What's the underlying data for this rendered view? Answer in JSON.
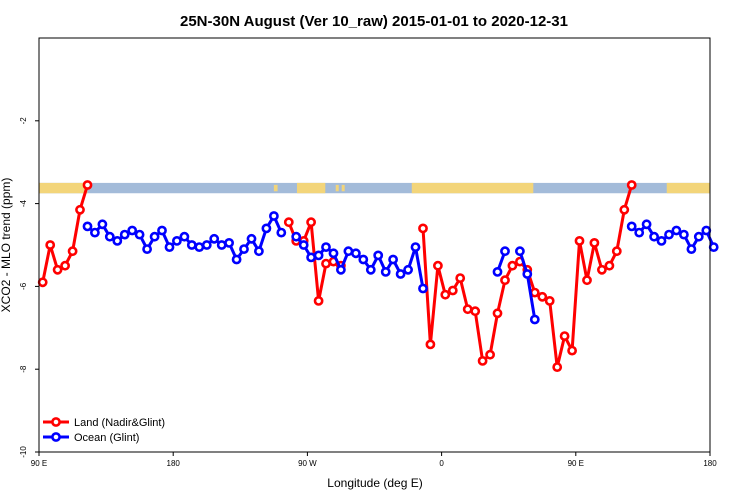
{
  "chart_data": {
    "type": "line",
    "title": "25N-30N August (Ver 10_raw)   2015-01-01 to 2020-12-31",
    "xlabel": "Longitude (deg E)",
    "ylabel": "XCO2 - MLO trend (ppm)",
    "xlim": [
      90,
      540
    ],
    "ylim": [
      -10,
      0
    ],
    "x_ticks": [
      {
        "value": 90,
        "label": "90 E"
      },
      {
        "value": 180,
        "label": "180"
      },
      {
        "value": 270,
        "label": "90 W"
      },
      {
        "value": 360,
        "label": "0"
      },
      {
        "value": 450,
        "label": "90 E"
      },
      {
        "value": 540,
        "label": "180"
      }
    ],
    "y_ticks": [
      {
        "value": -10,
        "label": "-10"
      },
      {
        "value": -8,
        "label": "-8"
      },
      {
        "value": -6,
        "label": "-6"
      },
      {
        "value": -4,
        "label": "-4"
      },
      {
        "value": -2,
        "label": "-2"
      }
    ],
    "grid": false,
    "legend_position": "bottom-left",
    "land_sea_strip": {
      "y_range": [
        -3.75,
        -3.5
      ],
      "ocean_color": "#a3bbd9",
      "land_color": "#f3d57a",
      "land_spans": [
        [
          90,
          122.5
        ],
        [
          263,
          282
        ],
        [
          340,
          421.5
        ],
        [
          511,
          540
        ]
      ],
      "land_specks": [
        [
          247.5,
          250
        ],
        [
          289,
          291
        ],
        [
          293,
          295
        ]
      ]
    },
    "series": [
      {
        "name": "Land (Nadir&Glint)",
        "color": "#ff0000",
        "segments": [
          [
            [
              92.5,
              -5.9
            ],
            [
              97.5,
              -5.0
            ],
            [
              102.5,
              -5.6
            ],
            [
              107.5,
              -5.5
            ],
            [
              112.5,
              -5.15
            ],
            [
              117.5,
              -4.15
            ],
            [
              122.5,
              -3.55
            ]
          ],
          [
            [
              257.5,
              -4.45
            ],
            [
              262.5,
              -4.9
            ],
            [
              267.5,
              -4.9
            ],
            [
              272.5,
              -4.45
            ],
            [
              277.5,
              -6.35
            ],
            [
              282.5,
              -5.45
            ],
            [
              287.5,
              -5.4
            ]
          ],
          [
            [
              292.5,
              -5.5
            ]
          ],
          [
            [
              347.5,
              -4.6
            ],
            [
              352.5,
              -7.4
            ],
            [
              357.5,
              -5.5
            ],
            [
              362.5,
              -6.2
            ],
            [
              367.5,
              -6.1
            ],
            [
              372.5,
              -5.8
            ],
            [
              377.5,
              -6.55
            ],
            [
              382.5,
              -6.6
            ],
            [
              387.5,
              -7.8
            ],
            [
              392.5,
              -7.65
            ],
            [
              397.5,
              -6.65
            ],
            [
              402.5,
              -5.85
            ],
            [
              407.5,
              -5.5
            ],
            [
              412.5,
              -5.4
            ],
            [
              417.5,
              -5.6
            ],
            [
              422.5,
              -6.15
            ],
            [
              427.5,
              -6.25
            ],
            [
              432.5,
              -6.35
            ],
            [
              437.5,
              -7.95
            ],
            [
              442.5,
              -7.2
            ],
            [
              447.5,
              -7.55
            ],
            [
              452.5,
              -4.9
            ],
            [
              457.5,
              -5.85
            ],
            [
              462.5,
              -4.95
            ],
            [
              467.5,
              -5.6
            ],
            [
              472.5,
              -5.5
            ],
            [
              477.5,
              -5.15
            ],
            [
              482.5,
              -4.15
            ],
            [
              487.5,
              -3.55
            ]
          ]
        ]
      },
      {
        "name": "Ocean (Glint)",
        "color": "#0000ff",
        "segments": [
          [
            [
              122.5,
              -4.55
            ],
            [
              127.5,
              -4.7
            ],
            [
              132.5,
              -4.5
            ],
            [
              137.5,
              -4.8
            ],
            [
              142.5,
              -4.9
            ],
            [
              147.5,
              -4.75
            ],
            [
              152.5,
              -4.65
            ],
            [
              157.5,
              -4.75
            ],
            [
              162.5,
              -5.1
            ],
            [
              167.5,
              -4.8
            ],
            [
              172.5,
              -4.65
            ],
            [
              177.5,
              -5.05
            ],
            [
              182.5,
              -4.9
            ],
            [
              187.5,
              -4.8
            ],
            [
              192.5,
              -5.0
            ],
            [
              197.5,
              -5.05
            ],
            [
              202.5,
              -5.0
            ],
            [
              207.5,
              -4.85
            ],
            [
              212.5,
              -5.0
            ],
            [
              217.5,
              -4.95
            ],
            [
              222.5,
              -5.35
            ],
            [
              227.5,
              -5.1
            ],
            [
              232.5,
              -4.85
            ],
            [
              237.5,
              -5.15
            ],
            [
              242.5,
              -4.6
            ],
            [
              247.5,
              -4.3
            ],
            [
              252.5,
              -4.7
            ]
          ],
          [
            [
              262.5,
              -4.8
            ],
            [
              267.5,
              -5.0
            ],
            [
              272.5,
              -5.3
            ],
            [
              277.5,
              -5.25
            ],
            [
              282.5,
              -5.05
            ],
            [
              287.5,
              -5.2
            ],
            [
              292.5,
              -5.6
            ],
            [
              297.5,
              -5.15
            ],
            [
              302.5,
              -5.2
            ],
            [
              307.5,
              -5.35
            ],
            [
              312.5,
              -5.6
            ],
            [
              317.5,
              -5.25
            ],
            [
              322.5,
              -5.65
            ],
            [
              327.5,
              -5.35
            ],
            [
              332.5,
              -5.7
            ],
            [
              337.5,
              -5.6
            ],
            [
              342.5,
              -5.05
            ],
            [
              347.5,
              -6.05
            ]
          ],
          [
            [
              397.5,
              -5.65
            ],
            [
              402.5,
              -5.15
            ]
          ],
          [
            [
              412.5,
              -5.15
            ],
            [
              417.5,
              -5.7
            ],
            [
              422.5,
              -6.8
            ]
          ],
          [
            [
              487.5,
              -4.55
            ],
            [
              492.5,
              -4.7
            ],
            [
              497.5,
              -4.5
            ],
            [
              502.5,
              -4.8
            ],
            [
              507.5,
              -4.9
            ],
            [
              512.5,
              -4.75
            ],
            [
              517.5,
              -4.65
            ],
            [
              522.5,
              -4.75
            ],
            [
              527.5,
              -5.1
            ],
            [
              532.5,
              -4.8
            ],
            [
              537.5,
              -4.65
            ],
            [
              542.5,
              -5.05
            ]
          ]
        ]
      }
    ]
  }
}
